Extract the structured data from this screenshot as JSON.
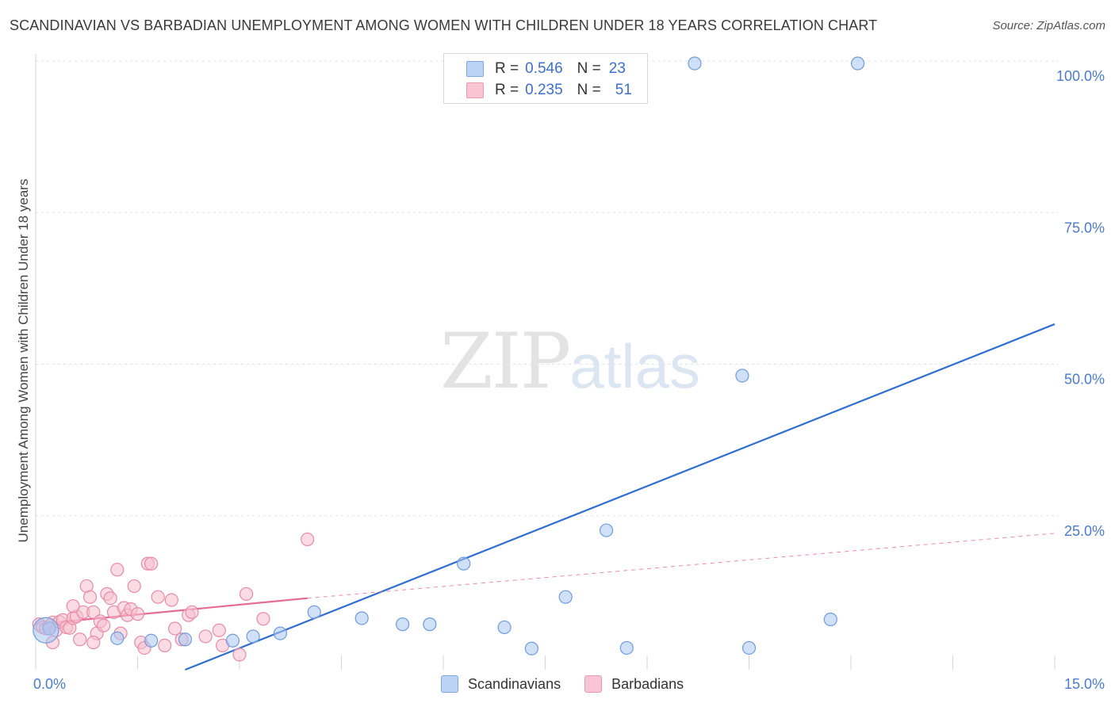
{
  "title": "SCANDINAVIAN VS BARBADIAN UNEMPLOYMENT AMONG WOMEN WITH CHILDREN UNDER 18 YEARS CORRELATION CHART",
  "source": "Source: ZipAtlas.com",
  "watermark": {
    "zip": "ZIP",
    "atlas": "atlas"
  },
  "legend": {
    "r_label": "R =",
    "n_label": "N =",
    "rows": [
      {
        "r": "0.546",
        "n": "23",
        "color": "#a9c6f0"
      },
      {
        "r": "0.235",
        "n": "51",
        "color": "#f5b8cb"
      }
    ]
  },
  "bottom_legend": [
    {
      "label": "Scandinavians",
      "color": "#bcd3f5"
    },
    {
      "label": "Barbadians",
      "color": "#f9c4d4"
    }
  ],
  "colors": {
    "blue_fill": "#a9c6f0",
    "blue_stroke": "#6f9bdc",
    "blue_line": "#2f6fd0",
    "pink_fill": "#f7c0d0",
    "pink_stroke": "#e88aa8",
    "pink_line": "#e46d95",
    "tick_label": "#4a7bd0",
    "grid": "#dde3ea"
  },
  "chart_data": {
    "type": "scatter",
    "xlabel": "",
    "ylabel": "Unemployment Among Women with Children Under 18 years",
    "x_ticks": [
      "0.0%",
      "15.0%"
    ],
    "y_ticks": [
      "25.0%",
      "50.0%",
      "75.0%",
      "100.0%"
    ],
    "xlim": [
      0,
      15
    ],
    "ylim": [
      0,
      100
    ],
    "grid": true,
    "legend_position": "top-center",
    "series": [
      {
        "name": "Scandinavians",
        "points": [
          [
            0.2,
            6.8
          ],
          [
            1.2,
            5.2
          ],
          [
            1.7,
            4.8
          ],
          [
            2.2,
            5.0
          ],
          [
            2.9,
            4.8
          ],
          [
            3.2,
            5.5
          ],
          [
            3.6,
            6.0
          ],
          [
            4.1,
            9.5
          ],
          [
            4.8,
            8.5
          ],
          [
            5.4,
            7.5
          ],
          [
            5.8,
            7.5
          ],
          [
            6.3,
            17.5
          ],
          [
            6.9,
            7.0
          ],
          [
            7.3,
            3.5
          ],
          [
            7.8,
            12.0
          ],
          [
            8.4,
            23.0
          ],
          [
            8.7,
            3.6
          ],
          [
            9.7,
            100.0
          ],
          [
            10.4,
            48.5
          ],
          [
            10.5,
            3.6
          ],
          [
            11.7,
            8.3
          ],
          [
            12.1,
            100.0
          ],
          [
            0.15,
            6.5
          ]
        ],
        "trend": {
          "x": [
            2.2,
            15.0
          ],
          "y": [
            0.0,
            57.0
          ]
        }
      },
      {
        "name": "Barbadians",
        "points": [
          [
            0.05,
            7.5
          ],
          [
            0.1,
            7.0
          ],
          [
            0.15,
            6.8
          ],
          [
            0.2,
            7.2
          ],
          [
            0.25,
            7.8
          ],
          [
            0.3,
            6.5
          ],
          [
            0.35,
            7.9
          ],
          [
            0.4,
            8.2
          ],
          [
            0.45,
            7.0
          ],
          [
            0.5,
            6.9
          ],
          [
            0.55,
            8.5
          ],
          [
            0.6,
            8.8
          ],
          [
            0.65,
            5.0
          ],
          [
            0.7,
            9.5
          ],
          [
            0.75,
            13.8
          ],
          [
            0.8,
            12.0
          ],
          [
            0.85,
            9.5
          ],
          [
            0.9,
            6.0
          ],
          [
            0.95,
            8.0
          ],
          [
            1.0,
            7.3
          ],
          [
            1.05,
            12.5
          ],
          [
            1.1,
            11.8
          ],
          [
            1.15,
            9.5
          ],
          [
            1.2,
            16.5
          ],
          [
            1.25,
            6.0
          ],
          [
            1.3,
            10.2
          ],
          [
            1.35,
            9.0
          ],
          [
            1.4,
            10.0
          ],
          [
            1.45,
            13.8
          ],
          [
            1.5,
            9.2
          ],
          [
            1.55,
            4.5
          ],
          [
            1.6,
            3.6
          ],
          [
            1.65,
            17.5
          ],
          [
            1.7,
            17.5
          ],
          [
            1.8,
            12.0
          ],
          [
            1.9,
            4.0
          ],
          [
            2.0,
            11.5
          ],
          [
            2.05,
            6.8
          ],
          [
            2.15,
            5.0
          ],
          [
            2.25,
            9.0
          ],
          [
            2.3,
            9.5
          ],
          [
            2.5,
            5.5
          ],
          [
            2.7,
            6.5
          ],
          [
            2.75,
            4.0
          ],
          [
            3.0,
            2.5
          ],
          [
            3.1,
            12.5
          ],
          [
            3.35,
            8.4
          ],
          [
            0.55,
            10.5
          ],
          [
            0.85,
            4.5
          ],
          [
            0.25,
            4.5
          ],
          [
            4.0,
            21.5
          ]
        ],
        "trend": {
          "x": [
            0.0,
            4.0
          ],
          "y": [
            7.5,
            11.8
          ]
        },
        "trend_dashed": {
          "x": [
            4.0,
            15.0
          ],
          "y": [
            11.8,
            22.5
          ]
        }
      }
    ]
  }
}
